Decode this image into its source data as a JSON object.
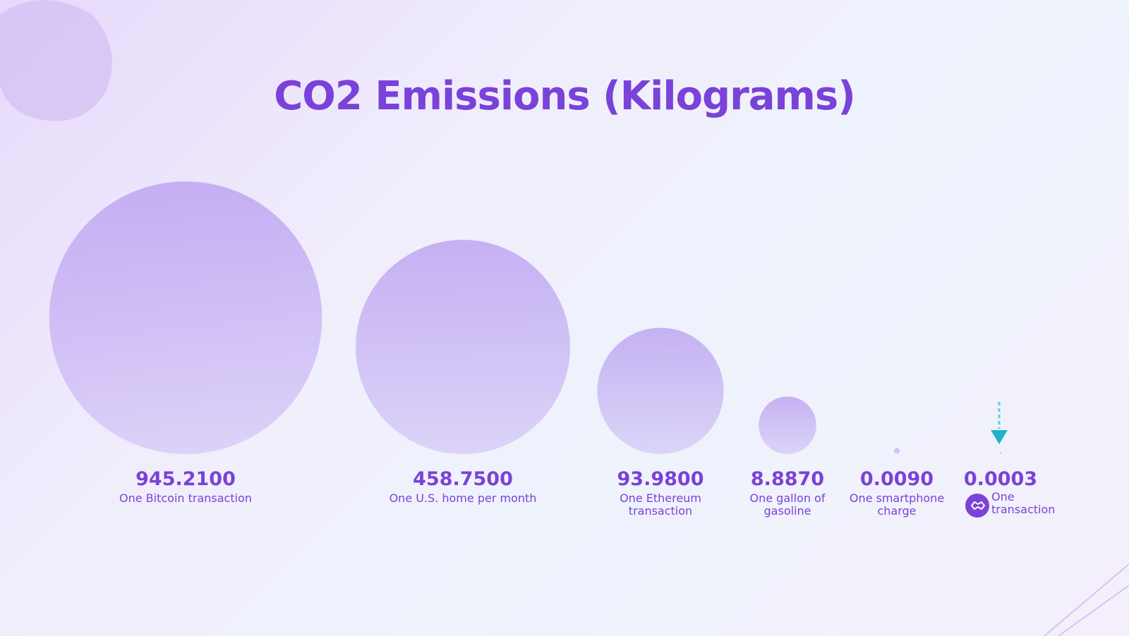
{
  "chart_data": {
    "type": "bubble",
    "title": "CO2 Emissions (Kilograms)",
    "categories": [
      "One Bitcoin transaction",
      "One U.S. home per month",
      "One Ethereum transaction",
      "One gallon of gasoline",
      "One smartphone charge",
      "One transaction"
    ],
    "values": [
      945.21,
      458.75,
      93.98,
      8.887,
      0.009,
      0.0003
    ],
    "value_labels": [
      "945.2100",
      "458.7500",
      "93.9800",
      "8.8870",
      "0.0090",
      "0.0003"
    ],
    "color": "#b79cf0"
  }
}
